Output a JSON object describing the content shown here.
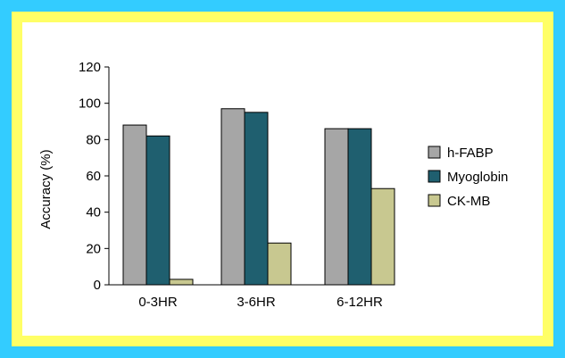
{
  "colors": {
    "background": "#33ccff",
    "border": "#ffff66",
    "panel": "#ffffff"
  },
  "chart_data": {
    "type": "bar",
    "categories": [
      "0-3HR",
      "3-6HR",
      "6-12HR"
    ],
    "series": [
      {
        "name": "h-FABP",
        "values": [
          88,
          97,
          86
        ],
        "color": "#a6a6a6"
      },
      {
        "name": "Myoglobin",
        "values": [
          82,
          95,
          86
        ],
        "color": "#1f5f6f"
      },
      {
        "name": "CK-MB",
        "values": [
          3,
          23,
          53
        ],
        "color": "#c8c890"
      }
    ],
    "title": "",
    "xlabel": "",
    "ylabel": "Accuracy  (%)",
    "ylim": [
      0,
      120
    ],
    "yticks": [
      "0",
      "20",
      "40",
      "60",
      "80",
      "100",
      "120"
    ],
    "grid": false,
    "legend_position": "right"
  }
}
